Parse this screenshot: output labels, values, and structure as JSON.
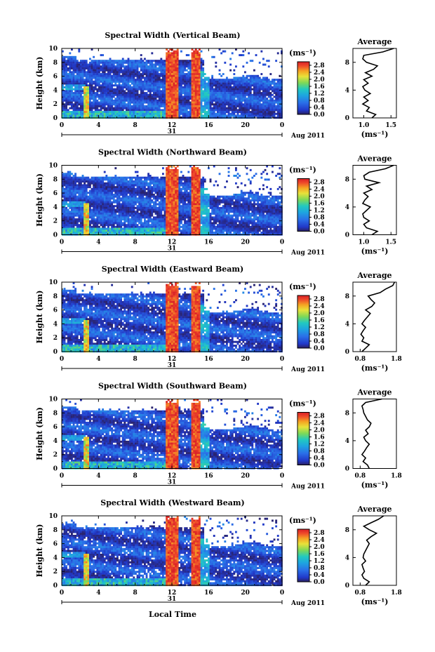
{
  "chart_data": {
    "type": "heatmap",
    "date_label": "Aug 2011",
    "date_tick": "31",
    "xlabel": "Local Time",
    "ylabel": "Height (km)",
    "unit_label": "(ms⁻¹)",
    "x_ticks": [
      "0",
      "4",
      "8",
      "12",
      "16",
      "20",
      "0"
    ],
    "y_ticks": [
      "0",
      "2",
      "4",
      "6",
      "8",
      "10"
    ],
    "xlim": [
      0,
      24
    ],
    "ylim": [
      0,
      10
    ],
    "colorbar": {
      "ticks": [
        "0.0",
        "0.4",
        "0.8",
        "1.2",
        "1.6",
        "2.0",
        "2.4",
        "2.8"
      ],
      "range": [
        0,
        3.0
      ],
      "colormap": "jet"
    },
    "avg_panel": {
      "title": "Average",
      "xlabel": "(ms⁻¹)",
      "ylim": [
        0,
        10
      ]
    },
    "panels": [
      {
        "title": "Spectral Width (Vertical Beam)",
        "avg_xticks": [
          "1.0",
          "1.5"
        ],
        "avg_xlim": [
          0.8,
          1.6
        ],
        "avg_profile": [
          [
            1.15,
            0
          ],
          [
            1.22,
            0.5
          ],
          [
            1.05,
            1
          ],
          [
            1.1,
            1.5
          ],
          [
            0.98,
            2
          ],
          [
            1.08,
            2.5
          ],
          [
            1.0,
            3
          ],
          [
            1.12,
            3.5
          ],
          [
            1.02,
            4
          ],
          [
            0.98,
            4.5
          ],
          [
            1.08,
            5
          ],
          [
            1.0,
            5.5
          ],
          [
            1.15,
            6
          ],
          [
            1.03,
            6.5
          ],
          [
            1.18,
            7
          ],
          [
            1.25,
            7.5
          ],
          [
            1.05,
            8
          ],
          [
            0.98,
            8.5
          ],
          [
            1.0,
            9
          ],
          [
            1.35,
            9.5
          ],
          [
            1.55,
            10
          ]
        ]
      },
      {
        "title": "Spectral Width (Northward Beam)",
        "avg_xticks": [
          "1.0",
          "1.5"
        ],
        "avg_xlim": [
          0.8,
          1.6
        ],
        "avg_profile": [
          [
            1.15,
            0
          ],
          [
            1.25,
            0.5
          ],
          [
            1.05,
            1
          ],
          [
            1.0,
            1.5
          ],
          [
            1.1,
            2
          ],
          [
            1.0,
            2.5
          ],
          [
            0.98,
            3
          ],
          [
            1.05,
            3.5
          ],
          [
            1.12,
            4
          ],
          [
            0.98,
            4.5
          ],
          [
            1.02,
            5
          ],
          [
            1.08,
            5.5
          ],
          [
            1.0,
            6
          ],
          [
            1.15,
            6.5
          ],
          [
            1.05,
            7
          ],
          [
            1.28,
            7.5
          ],
          [
            1.02,
            8
          ],
          [
            1.0,
            8.5
          ],
          [
            1.1,
            9
          ],
          [
            1.4,
            9.5
          ],
          [
            1.55,
            10
          ]
        ]
      },
      {
        "title": "Spectral Width (Eastward Beam)",
        "avg_xticks": [
          "0.8",
          "1.8"
        ],
        "avg_xlim": [
          0.6,
          1.8
        ],
        "avg_profile": [
          [
            0.85,
            0
          ],
          [
            0.95,
            0.5
          ],
          [
            1.05,
            1
          ],
          [
            0.85,
            1.5
          ],
          [
            0.9,
            2
          ],
          [
            0.82,
            2.5
          ],
          [
            0.88,
            3
          ],
          [
            0.95,
            3.5
          ],
          [
            0.85,
            4
          ],
          [
            0.92,
            4.5
          ],
          [
            1.0,
            5
          ],
          [
            1.08,
            5.5
          ],
          [
            0.95,
            6
          ],
          [
            1.12,
            6.5
          ],
          [
            1.2,
            7
          ],
          [
            1.1,
            7.5
          ],
          [
            1.02,
            8
          ],
          [
            1.35,
            8.5
          ],
          [
            1.5,
            9
          ],
          [
            1.7,
            9.5
          ],
          [
            1.75,
            10
          ]
        ]
      },
      {
        "title": "Spectral Width (Southward Beam)",
        "avg_xticks": [
          "0.8",
          "1.8"
        ],
        "avg_xlim": [
          0.6,
          1.8
        ],
        "avg_profile": [
          [
            1.05,
            0
          ],
          [
            1.0,
            0.5
          ],
          [
            0.88,
            1
          ],
          [
            0.95,
            1.5
          ],
          [
            0.85,
            2
          ],
          [
            0.92,
            2.5
          ],
          [
            0.98,
            3
          ],
          [
            1.05,
            3.5
          ],
          [
            0.95,
            4
          ],
          [
            0.9,
            4.5
          ],
          [
            1.02,
            5
          ],
          [
            0.95,
            5.5
          ],
          [
            1.05,
            6
          ],
          [
            1.1,
            6.5
          ],
          [
            1.0,
            7
          ],
          [
            0.95,
            7.5
          ],
          [
            0.9,
            8
          ],
          [
            0.88,
            8.5
          ],
          [
            0.85,
            9
          ],
          [
            0.95,
            9.5
          ],
          [
            1.4,
            10
          ]
        ]
      },
      {
        "title": "Spectral Width (Westward Beam)",
        "avg_xticks": [
          "0.8",
          "1.8"
        ],
        "avg_xlim": [
          0.6,
          1.8
        ],
        "avg_profile": [
          [
            0.95,
            0
          ],
          [
            1.05,
            0.5
          ],
          [
            0.9,
            1
          ],
          [
            0.85,
            1.5
          ],
          [
            0.92,
            2
          ],
          [
            0.88,
            2.5
          ],
          [
            0.85,
            3
          ],
          [
            0.95,
            3.5
          ],
          [
            0.88,
            4
          ],
          [
            0.9,
            4.5
          ],
          [
            0.95,
            5
          ],
          [
            1.0,
            5.5
          ],
          [
            1.05,
            6
          ],
          [
            0.98,
            6.5
          ],
          [
            1.1,
            7
          ],
          [
            1.25,
            7.5
          ],
          [
            1.05,
            8
          ],
          [
            0.9,
            8.5
          ],
          [
            1.1,
            9
          ],
          [
            1.3,
            9.5
          ],
          [
            1.45,
            10
          ]
        ]
      }
    ]
  },
  "colors": {
    "colormap_stops": [
      "#2a1f5e",
      "#2138c8",
      "#2a6fe8",
      "#1ea5e0",
      "#22c9c0",
      "#7ed957",
      "#e8e23a",
      "#f5a623",
      "#ef4a2a",
      "#d81f26"
    ]
  }
}
